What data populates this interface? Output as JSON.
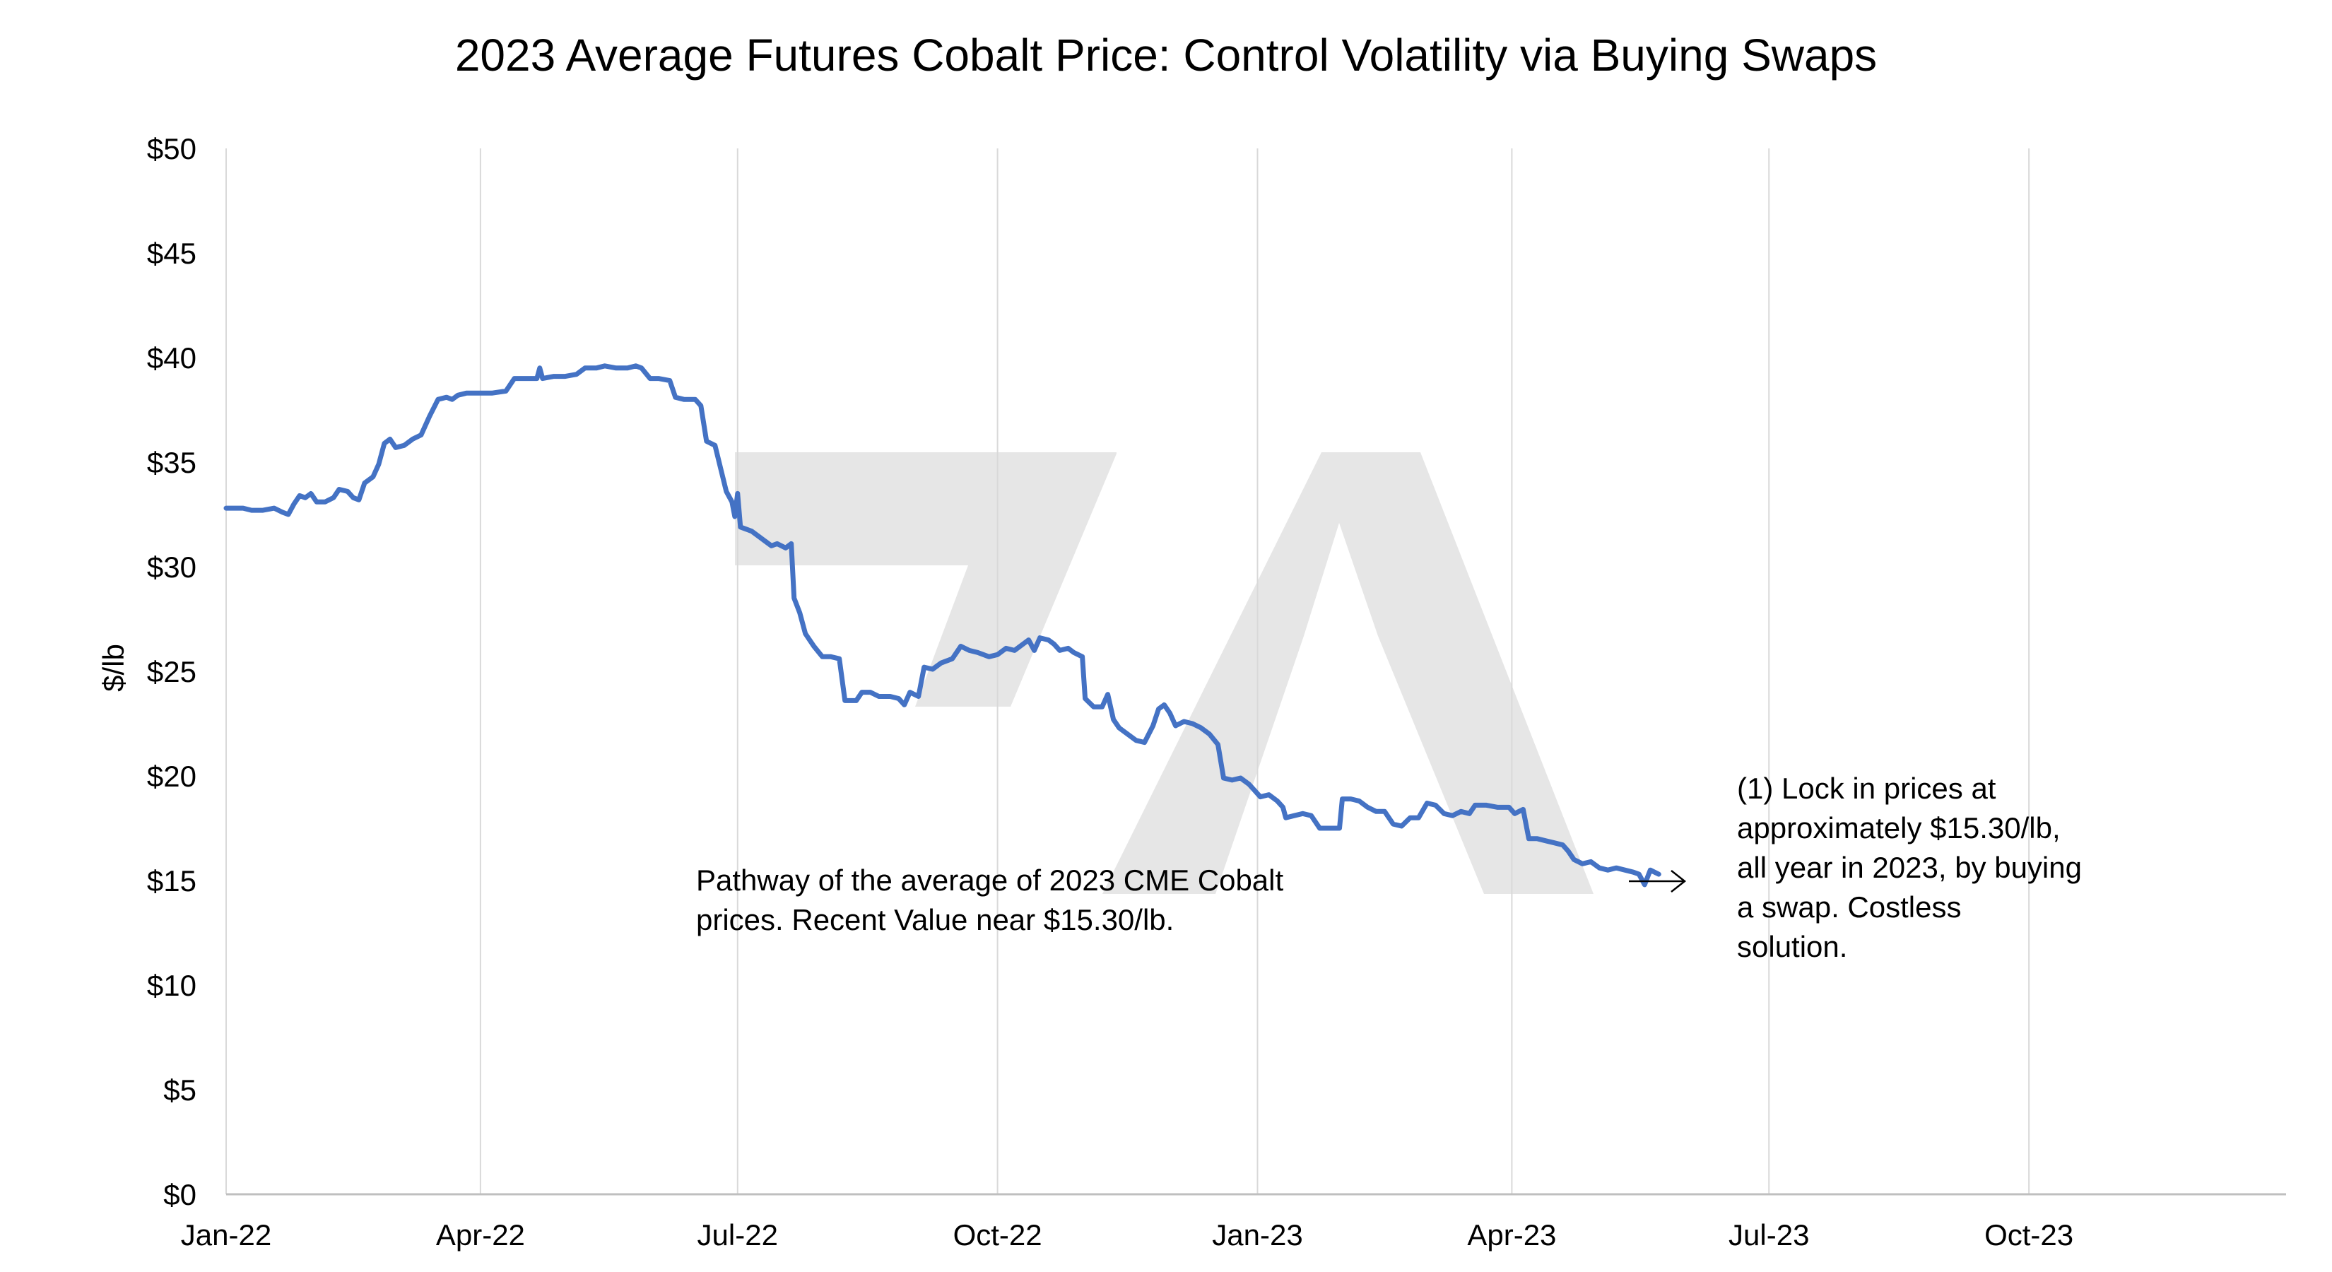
{
  "chart_data": {
    "type": "line",
    "title": "2023 Average Futures Cobalt Price: Control Volatility via Buying Swaps",
    "xlabel": "",
    "ylabel": "$/lb",
    "ylim": [
      0,
      50
    ],
    "y_ticks": [
      0,
      5,
      10,
      15,
      20,
      25,
      30,
      35,
      40,
      45,
      50
    ],
    "y_tick_labels": [
      "$0",
      "$5",
      "$10",
      "$15",
      "$20",
      "$25",
      "$30",
      "$35",
      "$40",
      "$45",
      "$50"
    ],
    "xlim": [
      "2022-01-01",
      "2023-12-31"
    ],
    "x_ticks": [
      "2022-01-01",
      "2022-04-01",
      "2022-07-01",
      "2022-10-01",
      "2023-01-01",
      "2023-04-01",
      "2023-07-01",
      "2023-10-01"
    ],
    "x_tick_labels": [
      "Jan-22",
      "Apr-22",
      "Jul-22",
      "Oct-22",
      "Jan-23",
      "Apr-23",
      "Jul-23",
      "Oct-23"
    ],
    "grid": "vertical",
    "legend": "none",
    "color": "#4472C4",
    "series": [
      {
        "name": "",
        "points": [
          [
            "2022-01-01",
            32.8
          ],
          [
            "2022-01-04",
            32.8
          ],
          [
            "2022-01-07",
            32.8
          ],
          [
            "2022-01-10",
            32.7
          ],
          [
            "2022-01-14",
            32.7
          ],
          [
            "2022-01-18",
            32.8
          ],
          [
            "2022-01-21",
            32.6
          ],
          [
            "2022-01-23",
            32.5
          ],
          [
            "2022-01-25",
            33.0
          ],
          [
            "2022-01-27",
            33.4
          ],
          [
            "2022-01-29",
            33.3
          ],
          [
            "2022-01-31",
            33.5
          ],
          [
            "2022-02-02",
            33.1
          ],
          [
            "2022-02-05",
            33.1
          ],
          [
            "2022-02-08",
            33.3
          ],
          [
            "2022-02-10",
            33.7
          ],
          [
            "2022-02-13",
            33.6
          ],
          [
            "2022-02-15",
            33.3
          ],
          [
            "2022-02-17",
            33.2
          ],
          [
            "2022-02-19",
            34.0
          ],
          [
            "2022-02-22",
            34.3
          ],
          [
            "2022-02-24",
            34.9
          ],
          [
            "2022-02-26",
            35.9
          ],
          [
            "2022-02-28",
            36.1
          ],
          [
            "2022-03-02",
            35.7
          ],
          [
            "2022-03-05",
            35.8
          ],
          [
            "2022-03-08",
            36.1
          ],
          [
            "2022-03-11",
            36.3
          ],
          [
            "2022-03-14",
            37.2
          ],
          [
            "2022-03-17",
            38.0
          ],
          [
            "2022-03-20",
            38.1
          ],
          [
            "2022-03-22",
            38.0
          ],
          [
            "2022-03-24",
            38.2
          ],
          [
            "2022-03-27",
            38.3
          ],
          [
            "2022-03-31",
            38.3
          ],
          [
            "2022-04-05",
            38.3
          ],
          [
            "2022-04-10",
            38.4
          ],
          [
            "2022-04-13",
            39.0
          ],
          [
            "2022-04-18",
            39.0
          ],
          [
            "2022-04-21",
            39.0
          ],
          [
            "2022-04-22",
            39.5
          ],
          [
            "2022-04-23",
            39.0
          ],
          [
            "2022-04-27",
            39.1
          ],
          [
            "2022-05-01",
            39.1
          ],
          [
            "2022-05-05",
            39.2
          ],
          [
            "2022-05-08",
            39.5
          ],
          [
            "2022-05-12",
            39.5
          ],
          [
            "2022-05-15",
            39.6
          ],
          [
            "2022-05-19",
            39.5
          ],
          [
            "2022-05-23",
            39.5
          ],
          [
            "2022-05-26",
            39.6
          ],
          [
            "2022-05-28",
            39.5
          ],
          [
            "2022-05-31",
            39.0
          ],
          [
            "2022-06-03",
            39.0
          ],
          [
            "2022-06-07",
            38.9
          ],
          [
            "2022-06-09",
            38.1
          ],
          [
            "2022-06-12",
            38.0
          ],
          [
            "2022-06-16",
            38.0
          ],
          [
            "2022-06-18",
            37.7
          ],
          [
            "2022-06-20",
            36.0
          ],
          [
            "2022-06-23",
            35.8
          ],
          [
            "2022-06-25",
            34.7
          ],
          [
            "2022-06-27",
            33.6
          ],
          [
            "2022-06-29",
            33.1
          ],
          [
            "2022-06-30",
            32.4
          ],
          [
            "2022-07-01",
            33.5
          ],
          [
            "2022-07-02",
            31.9
          ],
          [
            "2022-07-06",
            31.7
          ],
          [
            "2022-07-09",
            31.4
          ],
          [
            "2022-07-11",
            31.2
          ],
          [
            "2022-07-13",
            31.0
          ],
          [
            "2022-07-15",
            31.1
          ],
          [
            "2022-07-18",
            30.9
          ],
          [
            "2022-07-20",
            31.1
          ],
          [
            "2022-07-21",
            28.5
          ],
          [
            "2022-07-23",
            27.8
          ],
          [
            "2022-07-25",
            26.8
          ],
          [
            "2022-07-28",
            26.2
          ],
          [
            "2022-07-31",
            25.7
          ],
          [
            "2022-08-03",
            25.7
          ],
          [
            "2022-08-06",
            25.6
          ],
          [
            "2022-08-08",
            23.6
          ],
          [
            "2022-08-12",
            23.6
          ],
          [
            "2022-08-14",
            24.0
          ],
          [
            "2022-08-17",
            24.0
          ],
          [
            "2022-08-20",
            23.8
          ],
          [
            "2022-08-24",
            23.8
          ],
          [
            "2022-08-27",
            23.7
          ],
          [
            "2022-08-29",
            23.4
          ],
          [
            "2022-08-31",
            24.0
          ],
          [
            "2022-09-03",
            23.8
          ],
          [
            "2022-09-05",
            25.2
          ],
          [
            "2022-09-08",
            25.1
          ],
          [
            "2022-09-11",
            25.4
          ],
          [
            "2022-09-15",
            25.6
          ],
          [
            "2022-09-18",
            26.2
          ],
          [
            "2022-09-21",
            26.0
          ],
          [
            "2022-09-24",
            25.9
          ],
          [
            "2022-09-28",
            25.7
          ],
          [
            "2022-10-01",
            25.8
          ],
          [
            "2022-10-04",
            26.1
          ],
          [
            "2022-10-07",
            26.0
          ],
          [
            "2022-10-10",
            26.3
          ],
          [
            "2022-10-12",
            26.5
          ],
          [
            "2022-10-14",
            26.0
          ],
          [
            "2022-10-16",
            26.6
          ],
          [
            "2022-10-19",
            26.5
          ],
          [
            "2022-10-21",
            26.3
          ],
          [
            "2022-10-23",
            26.0
          ],
          [
            "2022-10-26",
            26.1
          ],
          [
            "2022-10-28",
            25.9
          ],
          [
            "2022-10-31",
            25.7
          ],
          [
            "2022-11-01",
            23.7
          ],
          [
            "2022-11-04",
            23.3
          ],
          [
            "2022-11-07",
            23.3
          ],
          [
            "2022-11-09",
            23.9
          ],
          [
            "2022-11-11",
            22.7
          ],
          [
            "2022-11-13",
            22.3
          ],
          [
            "2022-11-16",
            22.0
          ],
          [
            "2022-11-19",
            21.7
          ],
          [
            "2022-11-22",
            21.6
          ],
          [
            "2022-11-25",
            22.4
          ],
          [
            "2022-11-27",
            23.2
          ],
          [
            "2022-11-29",
            23.4
          ],
          [
            "2022-12-01",
            23.0
          ],
          [
            "2022-12-03",
            22.4
          ],
          [
            "2022-12-06",
            22.6
          ],
          [
            "2022-12-09",
            22.5
          ],
          [
            "2022-12-12",
            22.3
          ],
          [
            "2022-12-15",
            22.0
          ],
          [
            "2022-12-18",
            21.5
          ],
          [
            "2022-12-20",
            19.9
          ],
          [
            "2022-12-23",
            19.8
          ],
          [
            "2022-12-26",
            19.9
          ],
          [
            "2022-12-29",
            19.6
          ],
          [
            "2022-12-31",
            19.3
          ],
          [
            "2023-01-02",
            19.0
          ],
          [
            "2023-01-05",
            19.1
          ],
          [
            "2023-01-08",
            18.8
          ],
          [
            "2023-01-10",
            18.5
          ],
          [
            "2023-01-11",
            18.0
          ],
          [
            "2023-01-14",
            18.1
          ],
          [
            "2023-01-17",
            18.2
          ],
          [
            "2023-01-20",
            18.1
          ],
          [
            "2023-01-23",
            17.5
          ],
          [
            "2023-01-27",
            17.5
          ],
          [
            "2023-01-30",
            17.5
          ],
          [
            "2023-01-31",
            18.9
          ],
          [
            "2023-02-03",
            18.9
          ],
          [
            "2023-02-06",
            18.8
          ],
          [
            "2023-02-09",
            18.5
          ],
          [
            "2023-02-12",
            18.3
          ],
          [
            "2023-02-15",
            18.3
          ],
          [
            "2023-02-18",
            17.7
          ],
          [
            "2023-02-21",
            17.6
          ],
          [
            "2023-02-24",
            18.0
          ],
          [
            "2023-02-27",
            18.0
          ],
          [
            "2023-03-02",
            18.7
          ],
          [
            "2023-03-05",
            18.6
          ],
          [
            "2023-03-08",
            18.2
          ],
          [
            "2023-03-11",
            18.1
          ],
          [
            "2023-03-14",
            18.3
          ],
          [
            "2023-03-17",
            18.2
          ],
          [
            "2023-03-19",
            18.6
          ],
          [
            "2023-03-23",
            18.6
          ],
          [
            "2023-03-27",
            18.5
          ],
          [
            "2023-03-31",
            18.5
          ],
          [
            "2023-04-02",
            18.2
          ],
          [
            "2023-04-05",
            18.4
          ],
          [
            "2023-04-07",
            17.0
          ],
          [
            "2023-04-10",
            17.0
          ],
          [
            "2023-04-13",
            16.9
          ],
          [
            "2023-04-16",
            16.8
          ],
          [
            "2023-04-19",
            16.7
          ],
          [
            "2023-04-21",
            16.4
          ],
          [
            "2023-04-23",
            16.0
          ],
          [
            "2023-04-26",
            15.8
          ],
          [
            "2023-04-29",
            15.9
          ],
          [
            "2023-05-02",
            15.6
          ],
          [
            "2023-05-05",
            15.5
          ],
          [
            "2023-05-08",
            15.6
          ],
          [
            "2023-05-11",
            15.5
          ],
          [
            "2023-05-14",
            15.4
          ],
          [
            "2023-05-16",
            15.3
          ],
          [
            "2023-05-18",
            14.8
          ],
          [
            "2023-05-20",
            15.5
          ],
          [
            "2023-05-23",
            15.3
          ]
        ]
      }
    ],
    "annotations": [
      {
        "name": "pathway-note",
        "lines": [
          "Pathway of the average of 2023 CME Cobalt",
          "prices.  Recent Value near $15.30/lb."
        ]
      },
      {
        "name": "swap-note",
        "lines": [
          "(1) Lock in prices at",
          "approximately $15.30/lb,",
          "all year in 2023, by buying",
          "a swap. Costless",
          "solution."
        ]
      }
    ]
  }
}
